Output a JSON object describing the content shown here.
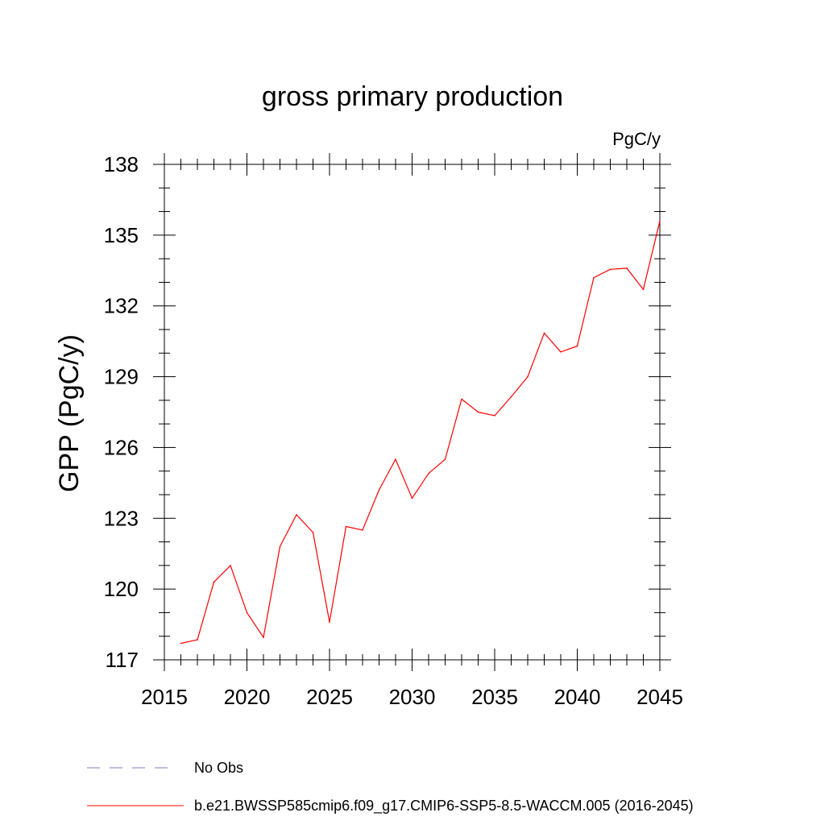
{
  "chart_data": {
    "type": "line",
    "title": "gross primary production",
    "units_label": "PgC/y",
    "xlabel": "",
    "ylabel": "GPP  (PgC/y)",
    "xlim": [
      2015,
      2045
    ],
    "ylim": [
      117,
      138
    ],
    "x_ticks": [
      2015,
      2020,
      2025,
      2030,
      2035,
      2040,
      2045
    ],
    "y_ticks": [
      117,
      120,
      123,
      126,
      129,
      132,
      135,
      138
    ],
    "series": [
      {
        "name": "b.e21.BWSSP585cmip6.f09_g17.CMIP6-SSP5-8.5-WACCM.005 (2016-2045)",
        "color": "#ff0000",
        "x": [
          2016,
          2017,
          2018,
          2019,
          2020,
          2021,
          2022,
          2023,
          2024,
          2025,
          2026,
          2027,
          2028,
          2029,
          2030,
          2031,
          2032,
          2033,
          2034,
          2035,
          2036,
          2037,
          2038,
          2039,
          2040,
          2041,
          2042,
          2043,
          2044,
          2045
        ],
        "values": [
          117.7,
          117.85,
          120.3,
          121.0,
          119.0,
          117.95,
          121.8,
          123.15,
          122.4,
          118.6,
          122.65,
          122.5,
          124.2,
          125.5,
          123.85,
          124.9,
          125.5,
          128.05,
          127.5,
          127.35,
          128.15,
          129.0,
          130.85,
          130.05,
          130.3,
          133.2,
          133.55,
          133.6,
          132.7,
          135.6
        ]
      }
    ],
    "legend": [
      {
        "label": "No Obs",
        "style": "dashed",
        "color": "#7a7ac8"
      },
      {
        "label": "b.e21.BWSSP585cmip6.f09_g17.CMIP6-SSP5-8.5-WACCM.005 (2016-2045)",
        "style": "solid",
        "color": "#ff0000"
      }
    ]
  }
}
